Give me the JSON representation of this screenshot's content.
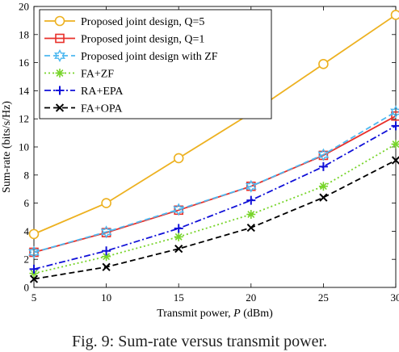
{
  "caption": "Fig. 9: Sum-rate versus transmit power.",
  "chart_data": {
    "type": "line",
    "xlabel": "Transmit power, P (dBm)",
    "xlabel_prefix": "Transmit power, ",
    "xlabel_var": "P",
    "xlabel_suffix": " (dBm)",
    "ylabel": "Sum-rate (bits/s/Hz)",
    "x": [
      5,
      10,
      15,
      20,
      25,
      30
    ],
    "xlim": [
      5,
      30
    ],
    "ylim": [
      0,
      20
    ],
    "xticks": [
      5,
      10,
      15,
      20,
      25,
      30
    ],
    "yticks": [
      0,
      2,
      4,
      6,
      8,
      10,
      12,
      14,
      16,
      18,
      20
    ],
    "grid": false,
    "legend_position": "top-left",
    "series": [
      {
        "name": "Proposed joint design, Q=5",
        "values": [
          3.8,
          6.0,
          9.2,
          12.4,
          15.9,
          19.4
        ],
        "color": "#EDB120",
        "marker": "circle",
        "dash": "solid"
      },
      {
        "name": "Proposed joint design, Q=1",
        "values": [
          2.5,
          3.9,
          5.5,
          7.2,
          9.4,
          12.2
        ],
        "color": "#E8302A",
        "marker": "square",
        "dash": "solid"
      },
      {
        "name": "Proposed joint design with ZF",
        "values": [
          2.5,
          3.95,
          5.55,
          7.2,
          9.45,
          12.5
        ],
        "color": "#4DB8F0",
        "marker": "hexagram",
        "dash": "dashed"
      },
      {
        "name": "FA+ZF",
        "values": [
          1.0,
          2.2,
          3.6,
          5.2,
          7.2,
          10.2
        ],
        "color": "#77D42A",
        "marker": "asterisk",
        "dash": "dotted"
      },
      {
        "name": "RA+EPA",
        "values": [
          1.3,
          2.6,
          4.2,
          6.2,
          8.6,
          11.5
        ],
        "color": "#1010D8",
        "marker": "plus",
        "dash": "dashdot"
      },
      {
        "name": "FA+OPA",
        "values": [
          0.6,
          1.45,
          2.75,
          4.25,
          6.4,
          9.05
        ],
        "color": "#000000",
        "marker": "x",
        "dash": "dashed"
      }
    ]
  }
}
